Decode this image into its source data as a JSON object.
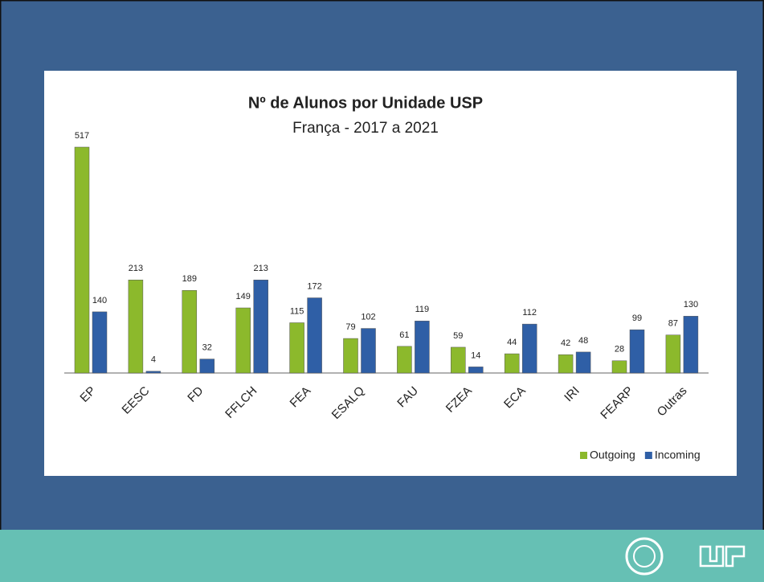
{
  "chart_data": {
    "type": "bar",
    "title": "Nº de Alunos por Unidade USP",
    "subtitle": "França - 2017 a 2021",
    "categories": [
      "EP",
      "EESC",
      "FD",
      "FFLCH",
      "FEA",
      "ESALQ",
      "FAU",
      "FZEA",
      "ECA",
      "IRI",
      "FEARP",
      "Outras"
    ],
    "series": [
      {
        "name": "Outgoing",
        "color": "#8cb92c",
        "values": [
          517,
          213,
          189,
          149,
          115,
          79,
          61,
          59,
          44,
          42,
          28,
          87
        ]
      },
      {
        "name": "Incoming",
        "color": "#2f5fa6",
        "values": [
          140,
          4,
          32,
          213,
          172,
          102,
          119,
          14,
          112,
          48,
          99,
          130
        ]
      }
    ],
    "legend": "bottom-right"
  }
}
